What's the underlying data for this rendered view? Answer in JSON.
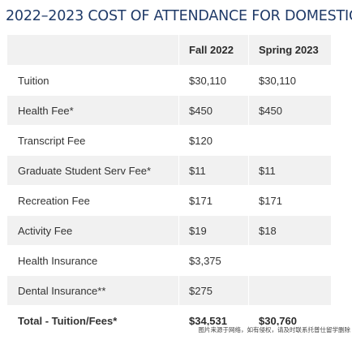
{
  "title": "2022–2023 COST OF ATTENDANCE FOR DOMESTIC",
  "table": {
    "headers": [
      "",
      "Fall 2022",
      "Spring 2023"
    ],
    "rows": [
      {
        "label": "Tuition",
        "fall": "$30,110",
        "spring": "$30,110"
      },
      {
        "label": "Health Fee*",
        "fall": "$450",
        "spring": "$450"
      },
      {
        "label": "Transcript Fee",
        "fall": "$120",
        "spring": ""
      },
      {
        "label": "Graduate Student Serv Fee*",
        "fall": "$11",
        "spring": "$11"
      },
      {
        "label": "Recreation Fee",
        "fall": "$171",
        "spring": "$171"
      },
      {
        "label": "Activity Fee",
        "fall": "$19",
        "spring": "$18"
      },
      {
        "label": "Health Insurance",
        "fall": "$3,375",
        "spring": ""
      },
      {
        "label": "Dental Insurance**",
        "fall": "$275",
        "spring": ""
      },
      {
        "label": "Total - Tuition/Fees*",
        "fall": "$34,531",
        "spring": "$30,760"
      }
    ]
  },
  "footer_note": "图片来源于网络，如有侵权，请及时联系托普仕留学删除"
}
